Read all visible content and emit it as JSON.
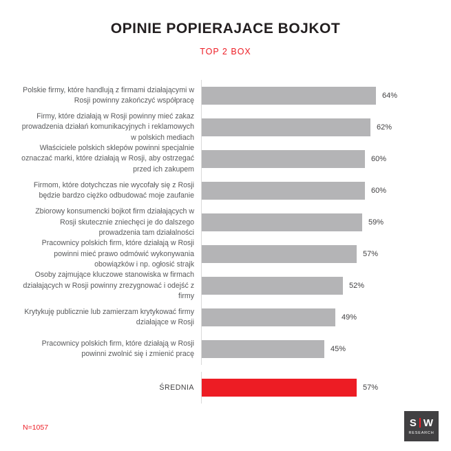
{
  "header": {
    "title": "OPINIE POPIERAJACE BOJKOT",
    "subtitle": "TOP 2 BOX"
  },
  "footer": {
    "sample_size": "N=1057"
  },
  "logo": {
    "letter_left": "S",
    "letter_right": "W",
    "caption": "RESEARCH"
  },
  "colors": {
    "bar": "#b4b4b6",
    "accent": "#ed1c24",
    "label_text": "#58595b",
    "title_text": "#231f20"
  },
  "chart_data": {
    "type": "bar",
    "orientation": "horizontal",
    "title": "OPINIE POPIERAJACE BOJKOT",
    "subtitle": "TOP 2 BOX",
    "value_suffix": "%",
    "xlim": [
      0,
      70
    ],
    "grid": false,
    "legend": false,
    "categories": [
      "Polskie firmy, które handlują z firmami działającymi w Rosji powinny zakończyć współpracę",
      "Firmy, które działają w Rosji powinny mieć zakaz prowadzenia działań komunikacyjnych i reklamowych w polskich mediach",
      "Właściciele polskich sklepów powinni specjalnie oznaczać marki, które działają w Rosji, aby ostrzegać przed ich zakupem",
      "Firmom, które dotychczas nie wycofały się z Rosji będzie bardzo ciężko odbudować moje zaufanie",
      "Zbiorowy konsumencki bojkot firm działających w Rosji skutecznie zniechęci je do dalszego prowadzenia tam działalności",
      "Pracownicy polskich firm, które działają w Rosji powinni mieć prawo odmówić wykonywania obowiązków i np. ogłosić strajk",
      "Osoby zajmujące kluczowe stanowiska w firmach działających w Rosji powinny zrezygnować i odejść z firmy",
      "Krytykuję publicznie lub zamierzam krytykować firmy działające w Rosji",
      "Pracownicy polskich firm, które działają w Rosji powinni zwolnić się i zmienić pracę",
      "ŚREDNIA"
    ],
    "values": [
      64,
      62,
      60,
      60,
      59,
      57,
      52,
      49,
      45,
      57
    ],
    "highlight_index": 9,
    "highlight_label": "ŚREDNIA"
  }
}
